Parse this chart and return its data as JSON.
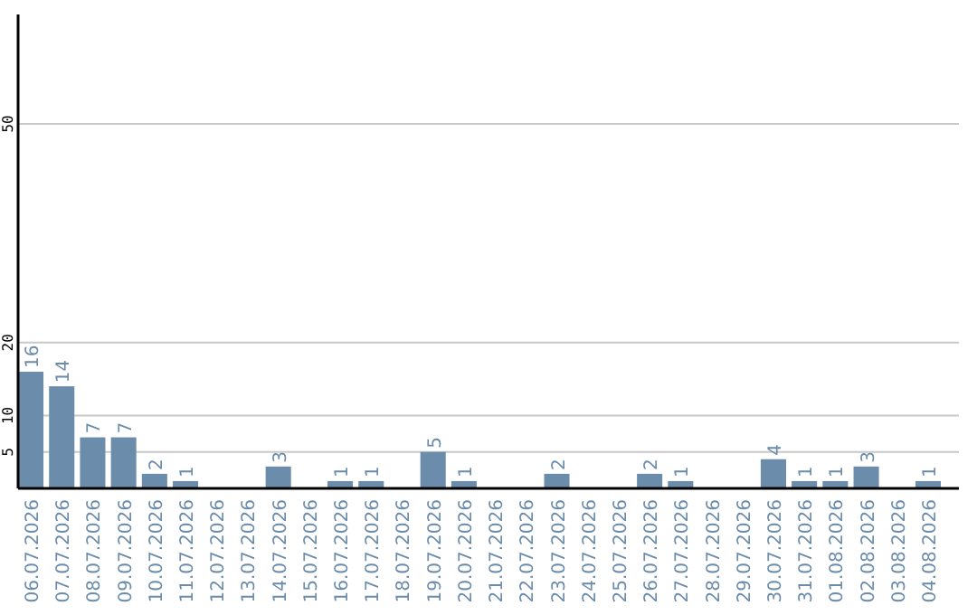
{
  "chart_data": {
    "type": "bar",
    "categories": [
      "06.07.2026",
      "07.07.2026",
      "08.07.2026",
      "09.07.2026",
      "10.07.2026",
      "11.07.2026",
      "12.07.2026",
      "13.07.2026",
      "14.07.2026",
      "15.07.2026",
      "16.07.2026",
      "17.07.2026",
      "18.07.2026",
      "19.07.2026",
      "20.07.2026",
      "21.07.2026",
      "22.07.2026",
      "23.07.2026",
      "24.07.2026",
      "25.07.2026",
      "26.07.2026",
      "27.07.2026",
      "28.07.2026",
      "29.07.2026",
      "30.07.2026",
      "31.07.2026",
      "01.08.2026",
      "02.08.2026",
      "03.08.2026",
      "04.08.2026"
    ],
    "values": [
      16,
      14,
      7,
      7,
      2,
      1,
      0,
      0,
      3,
      0,
      1,
      1,
      0,
      5,
      1,
      0,
      0,
      2,
      0,
      0,
      2,
      1,
      0,
      0,
      4,
      1,
      1,
      3,
      0,
      1
    ],
    "value_labels": [
      "16",
      "14",
      "7",
      "7",
      "2",
      "1",
      null,
      null,
      "3",
      null,
      "1",
      "1",
      null,
      "5",
      "1",
      null,
      null,
      "2",
      null,
      null,
      "2",
      "1",
      null,
      null,
      "4",
      "1",
      "1",
      "3",
      null,
      "1"
    ],
    "color": "#6b8cab",
    "ylim": [
      0,
      65
    ],
    "yticks": [
      5,
      10,
      20,
      50
    ],
    "grid": "y"
  }
}
